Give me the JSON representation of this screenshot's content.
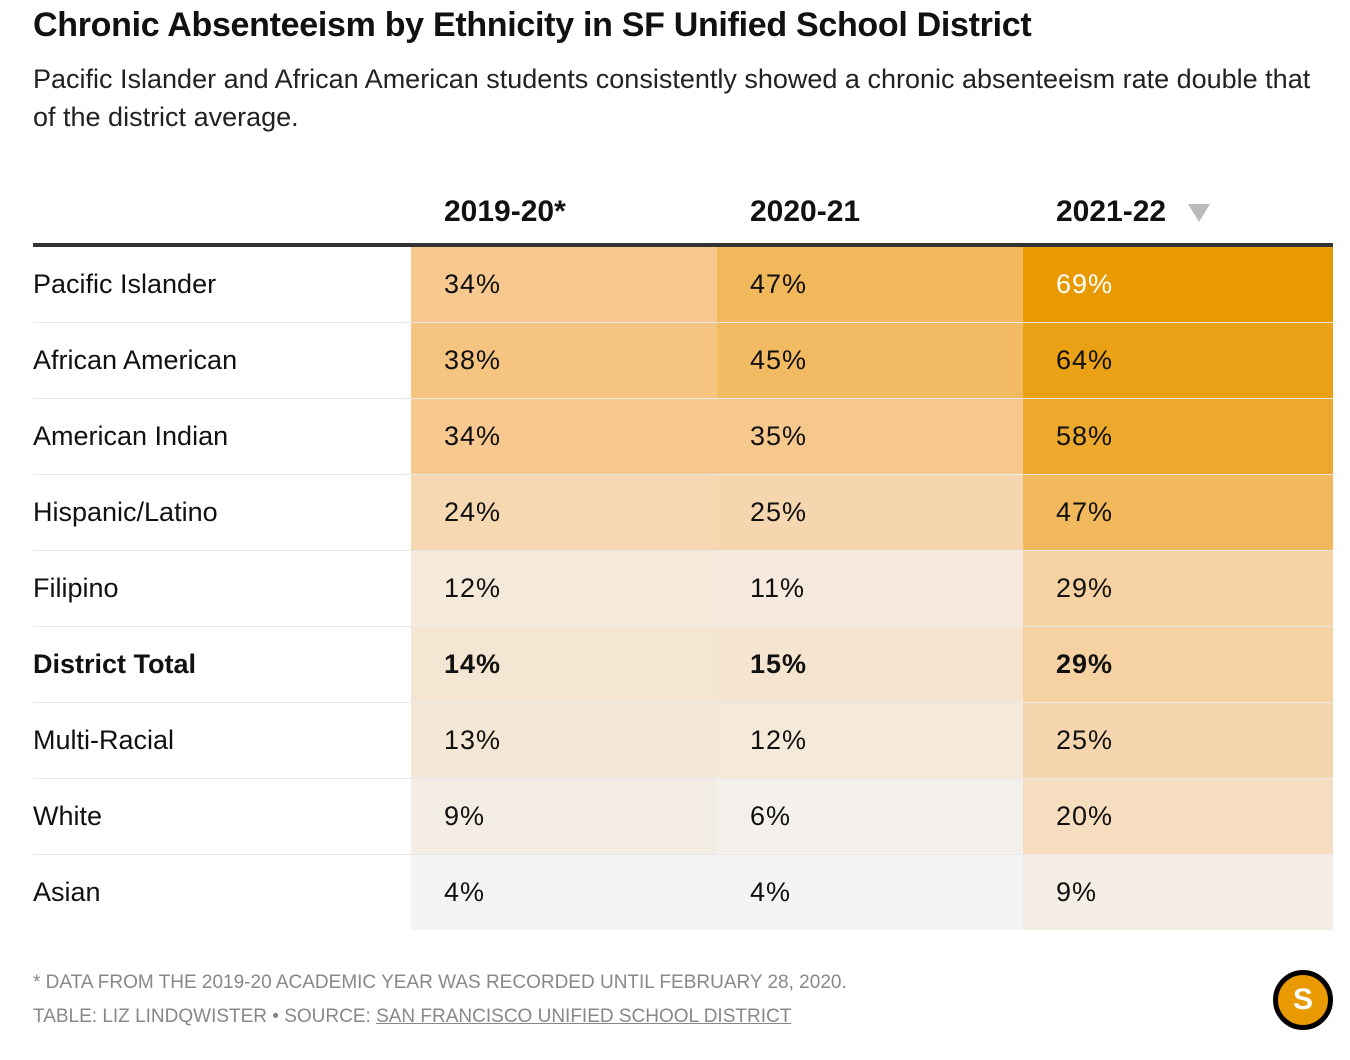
{
  "chart_data": {
    "type": "table",
    "title": "Chronic Absenteeism by Ethnicity in SF Unified School District",
    "subtitle": "Pacific Islander and African American students consistently showed a chronic absenteeism rate double that of the district average.",
    "columns": [
      "2019-20*",
      "2020-21",
      "2021-22"
    ],
    "sorted_column": "2021-22",
    "rows": [
      {
        "label": "Pacific Islander",
        "values": [
          34,
          47,
          69
        ]
      },
      {
        "label": "African American",
        "values": [
          38,
          45,
          64
        ]
      },
      {
        "label": "American Indian",
        "values": [
          34,
          35,
          58
        ]
      },
      {
        "label": "Hispanic/Latino",
        "values": [
          24,
          25,
          47
        ]
      },
      {
        "label": "Filipino",
        "values": [
          12,
          11,
          29
        ]
      },
      {
        "label": "District Total",
        "values": [
          14,
          15,
          29
        ],
        "bold": true
      },
      {
        "label": "Multi-Racial",
        "values": [
          13,
          12,
          25
        ]
      },
      {
        "label": "White",
        "values": [
          9,
          6,
          20
        ]
      },
      {
        "label": "Asian",
        "values": [
          4,
          4,
          9
        ]
      }
    ],
    "unit": "%",
    "colors": {
      "low": "#f4f4f4",
      "mid": "#f7c88e",
      "high": "#e89a00"
    }
  },
  "footer": {
    "note": "* DATA FROM THE 2019-20 ACADEMIC YEAR WAS RECORDED UNTIL FEBRUARY 28, 2020.",
    "credit": "TABLE: LIZ LINDQWISTER • SOURCE: ",
    "source": "SAN FRANCISCO UNIFIED SCHOOL DISTRICT"
  },
  "logo": "S"
}
